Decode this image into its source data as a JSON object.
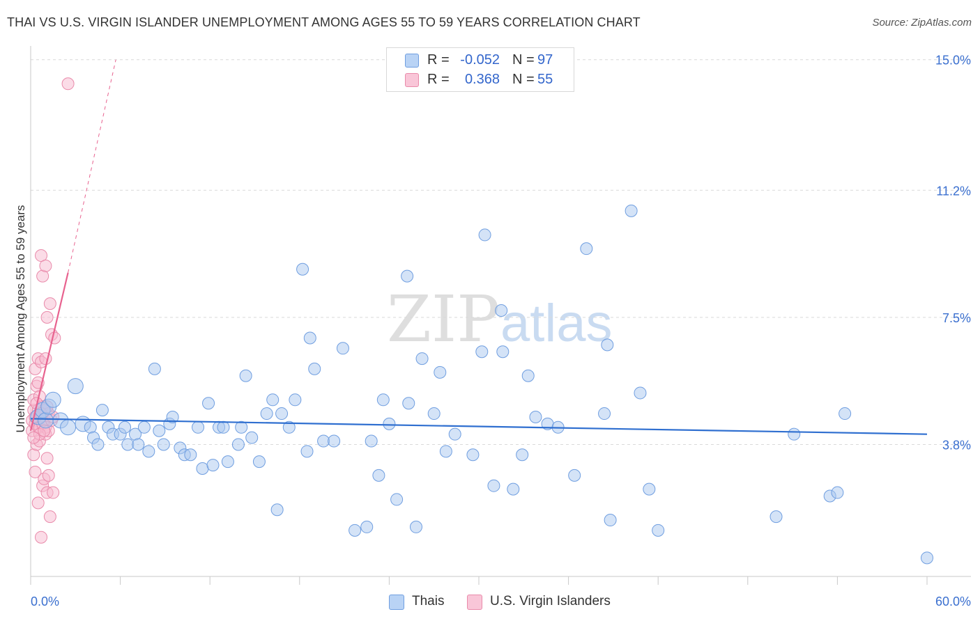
{
  "title": "THAI VS U.S. VIRGIN ISLANDER UNEMPLOYMENT AMONG AGES 55 TO 59 YEARS CORRELATION CHART",
  "source": "Source: ZipAtlas.com",
  "watermark": {
    "zip": "ZIP",
    "atlas": "atlas"
  },
  "legend_top": {
    "rows": [
      {
        "r_label": "R =",
        "r_value": "-0.052",
        "n_label": "N =",
        "n_value": "97"
      },
      {
        "r_label": "R =",
        "r_value": "0.368",
        "n_label": "N =",
        "n_value": "55"
      }
    ]
  },
  "legend_bottom": {
    "items": [
      {
        "label": "Thais"
      },
      {
        "label": "U.S. Virgin Islanders"
      }
    ]
  },
  "colors": {
    "thai_fill": "#a9c8f0",
    "thai_stroke": "#6f9ee0",
    "thai_line": "#2f6fd0",
    "vi_fill": "#f7b9cf",
    "vi_stroke": "#e98aaa",
    "vi_line": "#e8628f",
    "grid": "#d9d9d9",
    "tick_label": "#3a6fcf",
    "axis_title": "#333333"
  },
  "chart_data": {
    "type": "scatter",
    "title": "THAI VS U.S. VIRGIN ISLANDER UNEMPLOYMENT AMONG AGES 55 TO 59 YEARS CORRELATION CHART",
    "xlabel": "",
    "ylabel": "Unemployment Among Ages 55 to 59 years",
    "xlim": [
      0,
      60
    ],
    "ylim": [
      0,
      15.4
    ],
    "x_tick_labels": [
      "0.0%",
      "60.0%"
    ],
    "y_ticks": [
      3.8,
      7.5,
      11.2,
      15.0
    ],
    "y_tick_labels": [
      "3.8%",
      "7.5%",
      "11.2%",
      "15.0%"
    ],
    "grid": true,
    "legend_position": "top-center",
    "series": [
      {
        "name": "Thais",
        "r": -0.052,
        "n": 97,
        "trendline": {
          "x": [
            0,
            60
          ],
          "y": [
            4.55,
            4.1
          ]
        },
        "points": [
          [
            0.5,
            4.6
          ],
          [
            0.8,
            4.8
          ],
          [
            1.0,
            4.5
          ],
          [
            1.2,
            4.9
          ],
          [
            1.5,
            5.1
          ],
          [
            2.0,
            4.5
          ],
          [
            2.5,
            4.3
          ],
          [
            3.0,
            5.5
          ],
          [
            3.5,
            4.4
          ],
          [
            4.0,
            4.3
          ],
          [
            4.2,
            4.0
          ],
          [
            4.5,
            3.8
          ],
          [
            4.8,
            4.8
          ],
          [
            5.2,
            4.3
          ],
          [
            5.5,
            4.1
          ],
          [
            6.0,
            4.1
          ],
          [
            6.3,
            4.3
          ],
          [
            6.5,
            3.8
          ],
          [
            7.0,
            4.1
          ],
          [
            7.2,
            3.8
          ],
          [
            7.6,
            4.3
          ],
          [
            7.9,
            3.6
          ],
          [
            8.3,
            6.0
          ],
          [
            8.6,
            4.2
          ],
          [
            8.9,
            3.8
          ],
          [
            9.3,
            4.4
          ],
          [
            9.5,
            4.6
          ],
          [
            10.0,
            3.7
          ],
          [
            10.3,
            3.5
          ],
          [
            10.7,
            3.5
          ],
          [
            11.2,
            4.3
          ],
          [
            11.5,
            3.1
          ],
          [
            11.9,
            5.0
          ],
          [
            12.2,
            3.2
          ],
          [
            12.6,
            4.3
          ],
          [
            12.9,
            4.3
          ],
          [
            13.2,
            3.3
          ],
          [
            13.9,
            3.8
          ],
          [
            14.1,
            4.3
          ],
          [
            14.4,
            5.8
          ],
          [
            14.8,
            4.0
          ],
          [
            15.3,
            3.3
          ],
          [
            15.8,
            4.7
          ],
          [
            16.2,
            5.1
          ],
          [
            16.5,
            1.9
          ],
          [
            16.8,
            4.7
          ],
          [
            17.3,
            4.3
          ],
          [
            17.7,
            5.1
          ],
          [
            18.2,
            8.9
          ],
          [
            18.5,
            3.6
          ],
          [
            18.7,
            6.9
          ],
          [
            19.0,
            6.0
          ],
          [
            19.6,
            3.9
          ],
          [
            20.3,
            3.9
          ],
          [
            20.9,
            6.6
          ],
          [
            21.7,
            1.3
          ],
          [
            22.5,
            1.4
          ],
          [
            22.8,
            3.9
          ],
          [
            23.3,
            2.9
          ],
          [
            23.6,
            5.1
          ],
          [
            24.0,
            4.4
          ],
          [
            24.5,
            2.2
          ],
          [
            25.2,
            8.7
          ],
          [
            25.3,
            5.0
          ],
          [
            25.8,
            1.4
          ],
          [
            26.2,
            6.3
          ],
          [
            27.0,
            4.7
          ],
          [
            27.4,
            5.9
          ],
          [
            27.8,
            3.6
          ],
          [
            28.4,
            4.1
          ],
          [
            29.6,
            3.5
          ],
          [
            30.2,
            6.5
          ],
          [
            30.4,
            9.9
          ],
          [
            31.0,
            2.6
          ],
          [
            31.5,
            7.7
          ],
          [
            31.6,
            6.5
          ],
          [
            32.3,
            2.5
          ],
          [
            32.9,
            3.5
          ],
          [
            33.3,
            5.8
          ],
          [
            33.8,
            4.6
          ],
          [
            34.6,
            4.4
          ],
          [
            35.3,
            4.3
          ],
          [
            36.4,
            2.9
          ],
          [
            37.2,
            9.5
          ],
          [
            38.4,
            4.7
          ],
          [
            38.6,
            6.7
          ],
          [
            38.8,
            1.6
          ],
          [
            40.2,
            10.6
          ],
          [
            40.8,
            5.3
          ],
          [
            41.4,
            2.5
          ],
          [
            42.0,
            1.3
          ],
          [
            49.9,
            1.7
          ],
          [
            51.1,
            4.1
          ],
          [
            53.5,
            2.3
          ],
          [
            54.0,
            2.4
          ],
          [
            54.5,
            4.7
          ],
          [
            60.0,
            0.5
          ]
        ]
      },
      {
        "name": "U.S. Virgin Islanders",
        "r": 0.368,
        "n": 55,
        "trendline": {
          "x": [
            0,
            2.5
          ],
          "y": [
            4.2,
            8.8
          ]
        },
        "trendline_extended": {
          "x": [
            2.5,
            5.7
          ],
          "y": [
            8.8,
            15.0
          ]
        },
        "points": [
          [
            0.1,
            4.2
          ],
          [
            0.1,
            4.5
          ],
          [
            0.2,
            4.8
          ],
          [
            0.2,
            5.1
          ],
          [
            0.2,
            3.5
          ],
          [
            0.3,
            4.4
          ],
          [
            0.3,
            3.0
          ],
          [
            0.3,
            6.0
          ],
          [
            0.4,
            4.6
          ],
          [
            0.4,
            5.5
          ],
          [
            0.4,
            3.8
          ],
          [
            0.5,
            4.3
          ],
          [
            0.5,
            4.8
          ],
          [
            0.5,
            6.3
          ],
          [
            0.5,
            2.1
          ],
          [
            0.6,
            3.9
          ],
          [
            0.6,
            4.3
          ],
          [
            0.6,
            5.2
          ],
          [
            0.7,
            4.6
          ],
          [
            0.7,
            9.3
          ],
          [
            0.7,
            1.1
          ],
          [
            0.7,
            6.2
          ],
          [
            0.8,
            4.4
          ],
          [
            0.8,
            4.9
          ],
          [
            0.8,
            2.6
          ],
          [
            0.8,
            8.7
          ],
          [
            0.9,
            4.5
          ],
          [
            0.9,
            4.8
          ],
          [
            0.9,
            2.8
          ],
          [
            1.0,
            9.0
          ],
          [
            1.0,
            4.1
          ],
          [
            1.0,
            6.3
          ],
          [
            1.0,
            4.3
          ],
          [
            1.1,
            7.5
          ],
          [
            1.1,
            2.4
          ],
          [
            1.1,
            3.4
          ],
          [
            1.2,
            4.7
          ],
          [
            1.2,
            4.2
          ],
          [
            1.2,
            2.9
          ],
          [
            1.3,
            7.9
          ],
          [
            1.3,
            1.7
          ],
          [
            1.4,
            4.5
          ],
          [
            1.4,
            7.0
          ],
          [
            1.5,
            4.6
          ],
          [
            1.5,
            2.4
          ],
          [
            1.6,
            6.9
          ],
          [
            2.5,
            14.3
          ],
          [
            0.3,
            4.6
          ],
          [
            0.4,
            5.0
          ],
          [
            0.6,
            4.1
          ],
          [
            0.7,
            4.7
          ],
          [
            0.9,
            4.2
          ],
          [
            0.2,
            4.0
          ],
          [
            0.5,
            5.6
          ],
          [
            1.1,
            4.9
          ]
        ]
      }
    ]
  }
}
